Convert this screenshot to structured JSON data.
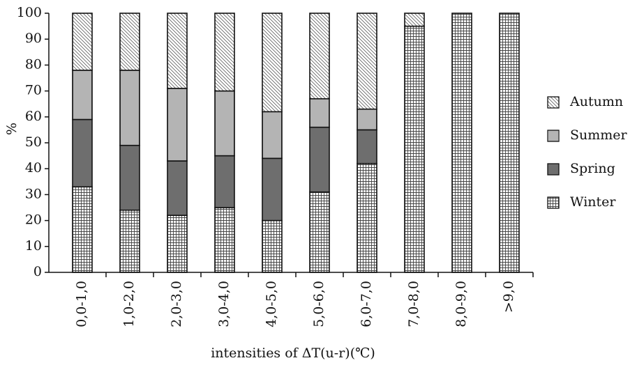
{
  "chart_data": {
    "type": "stacked_bar",
    "x_label": "intensities of ΔT(u-r)(℃)",
    "y_label": "%",
    "categories": [
      "0,0-1,0",
      "1,0-2,0",
      "2,0-3,0",
      "3,0-4,0",
      "4,0-5,0",
      "5,0-6,0",
      "6,0-7,0",
      "7,0-8,0",
      "8,0-9,0",
      ">9,0"
    ],
    "series": [
      {
        "name": "Winter",
        "color": "#444444",
        "pattern": "grid",
        "values": [
          33,
          24,
          22,
          25,
          20,
          31,
          42,
          95,
          100,
          100
        ]
      },
      {
        "name": "Spring",
        "color": "#6e6e6e",
        "pattern": "solid",
        "values": [
          26,
          25,
          21,
          20,
          24,
          25,
          13,
          0,
          0,
          0
        ]
      },
      {
        "name": "Summer",
        "color": "#444444",
        "pattern": "vertical",
        "values": [
          19,
          29,
          28,
          25,
          18,
          11,
          8,
          0,
          0,
          0
        ]
      },
      {
        "name": "Autumn",
        "color": "#444444",
        "pattern": "diagonal",
        "values": [
          22,
          22,
          29,
          30,
          38,
          33,
          37,
          5,
          0,
          0
        ]
      }
    ],
    "ylim": [
      0,
      100
    ],
    "yticks": [
      0,
      10,
      20,
      30,
      40,
      50,
      60,
      70,
      80,
      90,
      100
    ],
    "legend": "right"
  }
}
